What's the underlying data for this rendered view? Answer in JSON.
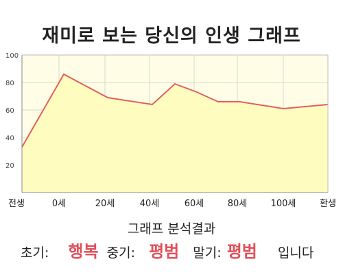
{
  "chart_data": {
    "type": "area",
    "title": "재미로 보는 당신의 인생 그래프",
    "x_labels": [
      "전생",
      "0세",
      "20세",
      "40세",
      "60세",
      "80세",
      "100세",
      "환생"
    ],
    "ylim": [
      0,
      100
    ],
    "y_ticks": [
      20,
      40,
      60,
      80,
      100
    ],
    "grid": true,
    "colors": {
      "line": "#e06060",
      "fill": "#fffcc0",
      "plot_bg": "#fffde6",
      "grid": "#d9d9c8"
    },
    "points": [
      {
        "label": "전생",
        "y": 33
      },
      {
        "label": "0세",
        "y": 86
      },
      {
        "label": "",
        "y": 69
      },
      {
        "label": "",
        "y": 64
      },
      {
        "label": "",
        "y": 79
      },
      {
        "label": "",
        "y": 73
      },
      {
        "label": "",
        "y": 66
      },
      {
        "label": "",
        "y": 66
      },
      {
        "label": "",
        "y": 61
      },
      {
        "label": "환생",
        "y": 64
      }
    ]
  },
  "result": {
    "heading": "그래프 분석결과",
    "early_label": "초기:",
    "early_value": "행복",
    "middle_label": "중기:",
    "middle_value": "평범",
    "late_label": "말기:",
    "late_value": "평범",
    "suffix": "입니다"
  }
}
